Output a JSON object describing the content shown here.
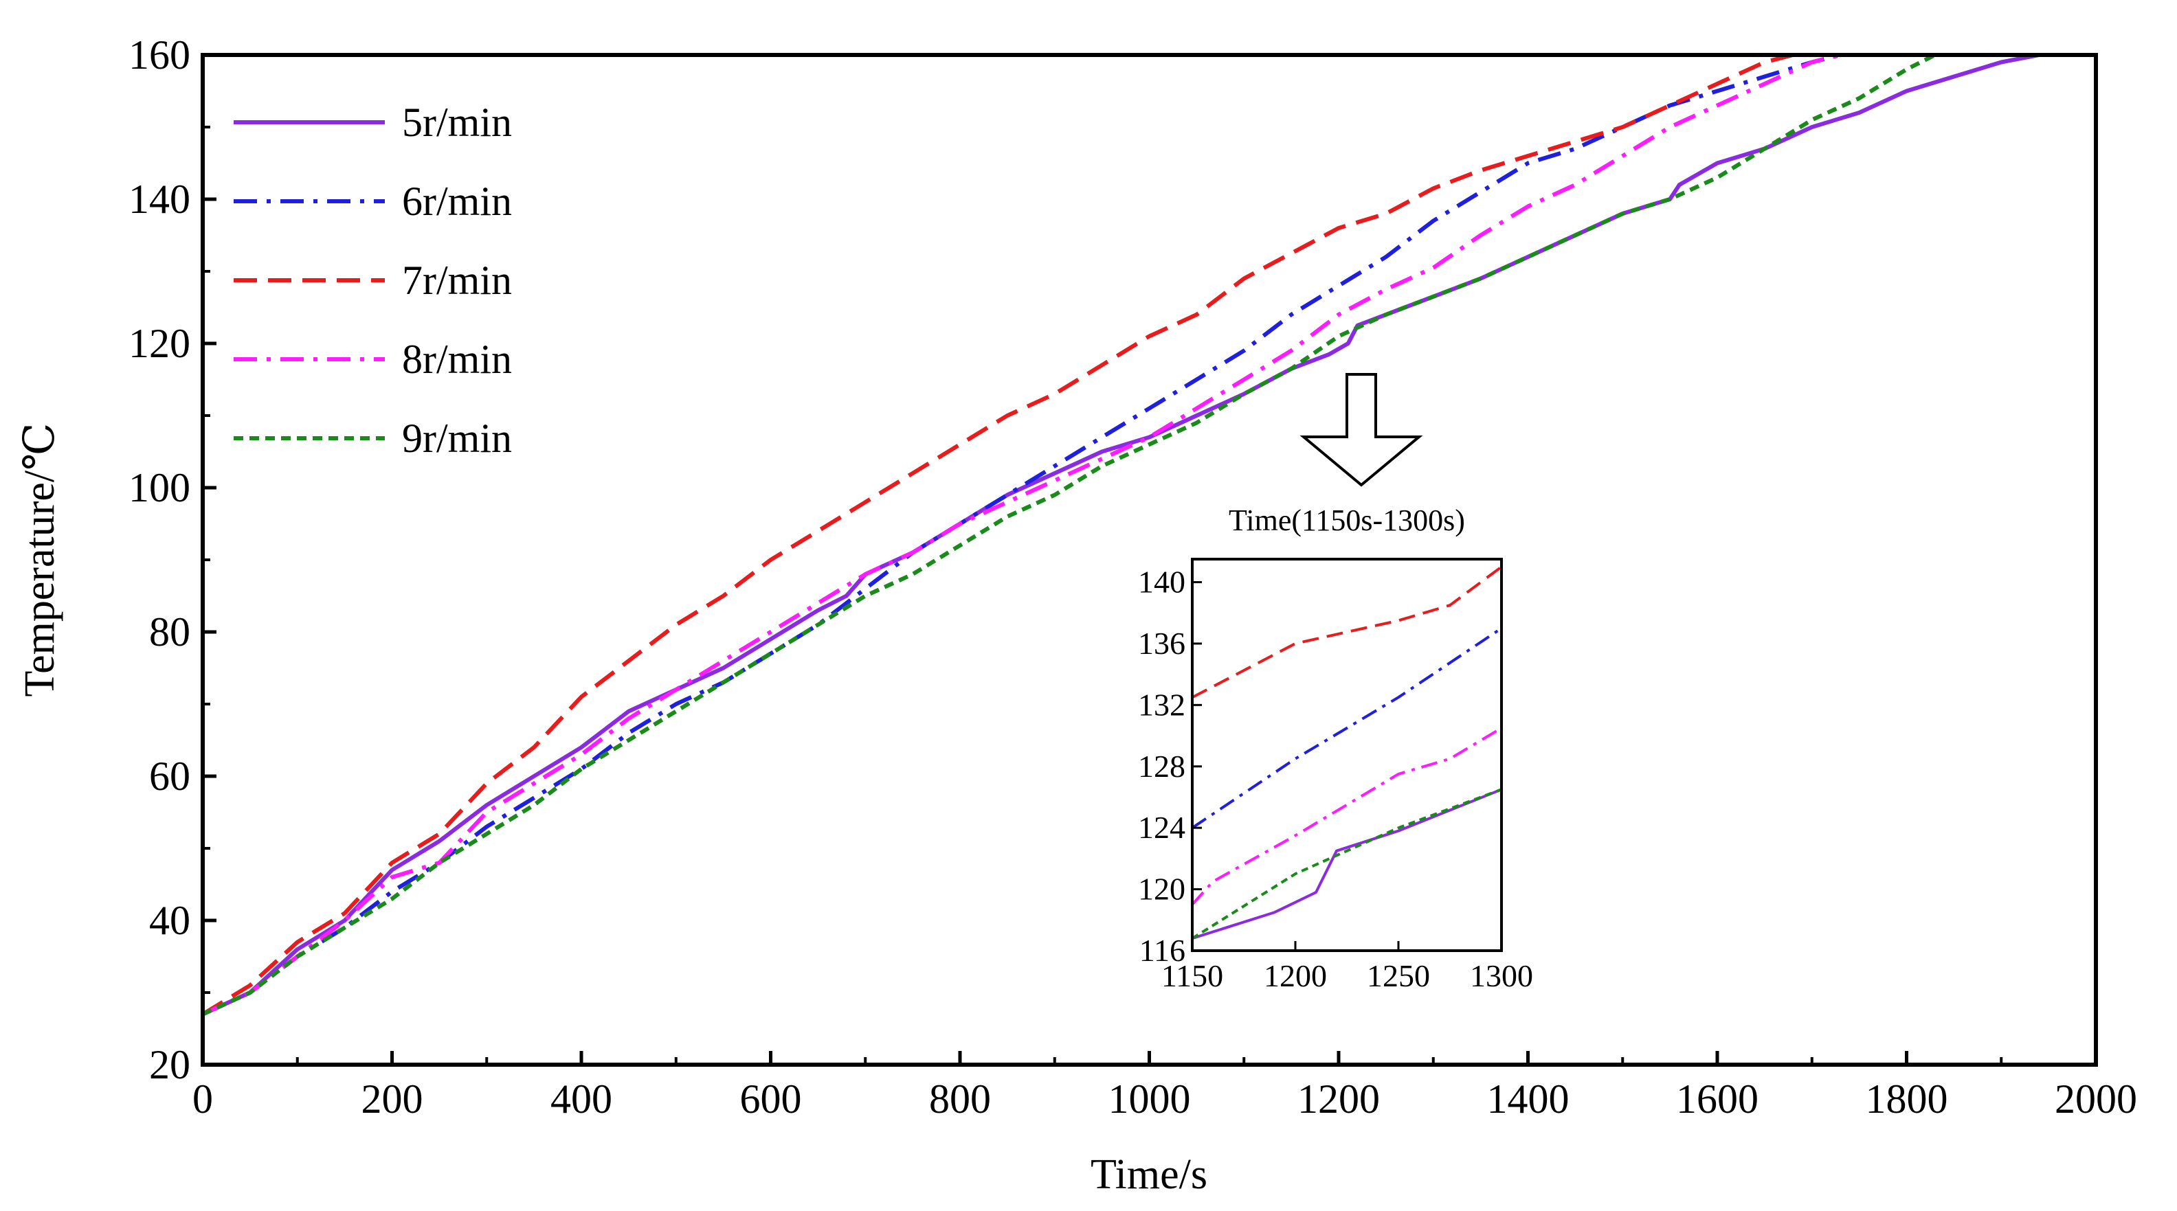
{
  "chart_data": {
    "main": {
      "type": "line",
      "xlabel": "Time/s",
      "ylabel": "Temperature/℃",
      "xlim": [
        0,
        2000
      ],
      "ylim": [
        20,
        160
      ],
      "xticks": [
        0,
        200,
        400,
        600,
        800,
        1000,
        1200,
        1400,
        1600,
        1800,
        2000
      ],
      "yticks": [
        20,
        40,
        60,
        80,
        100,
        120,
        140,
        160
      ],
      "grid": false,
      "legend_position": "top-left",
      "series": [
        {
          "name": "5r/min",
          "color": "#8a2be2",
          "dash": "solid",
          "points": [
            [
              0,
              27
            ],
            [
              50,
              30
            ],
            [
              100,
              36
            ],
            [
              150,
              40
            ],
            [
              200,
              47
            ],
            [
              250,
              51
            ],
            [
              270,
              53
            ],
            [
              300,
              56
            ],
            [
              350,
              60
            ],
            [
              400,
              64
            ],
            [
              450,
              69
            ],
            [
              500,
              72
            ],
            [
              550,
              75
            ],
            [
              600,
              79
            ],
            [
              650,
              83
            ],
            [
              680,
              85
            ],
            [
              700,
              88
            ],
            [
              750,
              91
            ],
            [
              800,
              95
            ],
            [
              850,
              99
            ],
            [
              900,
              102
            ],
            [
              950,
              105
            ],
            [
              1000,
              107
            ],
            [
              1050,
              110
            ],
            [
              1100,
              113
            ],
            [
              1150,
              116.5
            ],
            [
              1190,
              118.5
            ],
            [
              1210,
              120
            ],
            [
              1220,
              122.5
            ],
            [
              1250,
              124
            ],
            [
              1300,
              126.5
            ],
            [
              1350,
              129
            ],
            [
              1400,
              132
            ],
            [
              1450,
              135
            ],
            [
              1500,
              138
            ],
            [
              1550,
              140
            ],
            [
              1560,
              142
            ],
            [
              1600,
              145
            ],
            [
              1650,
              147
            ],
            [
              1700,
              150
            ],
            [
              1750,
              152
            ],
            [
              1800,
              155
            ],
            [
              1850,
              157
            ],
            [
              1900,
              159
            ],
            [
              1940,
              160
            ]
          ]
        },
        {
          "name": "6r/min",
          "color": "#1f1fe0",
          "dash": "dashdot",
          "points": [
            [
              0,
              27
            ],
            [
              50,
              30
            ],
            [
              100,
              35
            ],
            [
              150,
              39
            ],
            [
              200,
              44
            ],
            [
              250,
              48
            ],
            [
              300,
              53
            ],
            [
              350,
              57
            ],
            [
              400,
              61
            ],
            [
              450,
              66
            ],
            [
              500,
              70
            ],
            [
              550,
              73
            ],
            [
              600,
              77
            ],
            [
              650,
              81
            ],
            [
              700,
              86
            ],
            [
              750,
              91
            ],
            [
              800,
              95
            ],
            [
              850,
              99
            ],
            [
              900,
              103
            ],
            [
              950,
              107
            ],
            [
              1000,
              111
            ],
            [
              1050,
              115
            ],
            [
              1100,
              119
            ],
            [
              1150,
              124
            ],
            [
              1200,
              128
            ],
            [
              1250,
              132
            ],
            [
              1300,
              137
            ],
            [
              1350,
              141
            ],
            [
              1400,
              145
            ],
            [
              1450,
              147
            ],
            [
              1500,
              150
            ],
            [
              1550,
              153
            ],
            [
              1600,
              155
            ],
            [
              1650,
              157
            ],
            [
              1700,
              159
            ],
            [
              1730,
              160
            ]
          ]
        },
        {
          "name": "7r/min",
          "color": "#e81c1c",
          "dash": "dashed",
          "points": [
            [
              0,
              27
            ],
            [
              50,
              31
            ],
            [
              100,
              37
            ],
            [
              150,
              41
            ],
            [
              200,
              48
            ],
            [
              250,
              52
            ],
            [
              300,
              59
            ],
            [
              350,
              64
            ],
            [
              400,
              71
            ],
            [
              450,
              76
            ],
            [
              500,
              81
            ],
            [
              550,
              85
            ],
            [
              600,
              90
            ],
            [
              650,
              94
            ],
            [
              700,
              98
            ],
            [
              750,
              102
            ],
            [
              800,
              106
            ],
            [
              850,
              110
            ],
            [
              900,
              113
            ],
            [
              950,
              117
            ],
            [
              1000,
              121
            ],
            [
              1050,
              124
            ],
            [
              1100,
              129
            ],
            [
              1150,
              132.5
            ],
            [
              1200,
              136
            ],
            [
              1250,
              138
            ],
            [
              1300,
              141.5
            ],
            [
              1350,
              144
            ],
            [
              1400,
              146
            ],
            [
              1450,
              148
            ],
            [
              1500,
              150
            ],
            [
              1550,
              153
            ],
            [
              1600,
              156
            ],
            [
              1650,
              159
            ],
            [
              1680,
              160
            ]
          ]
        },
        {
          "name": "8r/min",
          "color": "#ff1cff",
          "dash": "dashdot",
          "points": [
            [
              0,
              27
            ],
            [
              50,
              30
            ],
            [
              100,
              35
            ],
            [
              150,
              40
            ],
            [
              200,
              46
            ],
            [
              250,
              48
            ],
            [
              300,
              55
            ],
            [
              350,
              59
            ],
            [
              400,
              63
            ],
            [
              450,
              68
            ],
            [
              500,
              72
            ],
            [
              550,
              76
            ],
            [
              600,
              80
            ],
            [
              650,
              84
            ],
            [
              700,
              88
            ],
            [
              750,
              91
            ],
            [
              800,
              95
            ],
            [
              850,
              98
            ],
            [
              900,
              101
            ],
            [
              950,
              104
            ],
            [
              1000,
              107
            ],
            [
              1050,
              111
            ],
            [
              1100,
              115
            ],
            [
              1150,
              119
            ],
            [
              1200,
              124
            ],
            [
              1250,
              127.5
            ],
            [
              1300,
              130.5
            ],
            [
              1350,
              135
            ],
            [
              1400,
              139
            ],
            [
              1450,
              142
            ],
            [
              1500,
              146
            ],
            [
              1550,
              150
            ],
            [
              1600,
              153
            ],
            [
              1650,
              156
            ],
            [
              1700,
              159
            ],
            [
              1730,
              160
            ]
          ]
        },
        {
          "name": "9r/min",
          "color": "#1a8a1a",
          "dash": "dotted",
          "points": [
            [
              0,
              27
            ],
            [
              50,
              30
            ],
            [
              100,
              35
            ],
            [
              150,
              39
            ],
            [
              200,
              43
            ],
            [
              250,
              48
            ],
            [
              300,
              52
            ],
            [
              350,
              56
            ],
            [
              400,
              61
            ],
            [
              450,
              65
            ],
            [
              500,
              69
            ],
            [
              550,
              73
            ],
            [
              600,
              77
            ],
            [
              650,
              81
            ],
            [
              700,
              85
            ],
            [
              750,
              88
            ],
            [
              800,
              92
            ],
            [
              850,
              96
            ],
            [
              900,
              99
            ],
            [
              950,
              103
            ],
            [
              1000,
              106
            ],
            [
              1050,
              109
            ],
            [
              1100,
              113
            ],
            [
              1150,
              116.5
            ],
            [
              1200,
              121
            ],
            [
              1250,
              124
            ],
            [
              1300,
              126.5
            ],
            [
              1350,
              129
            ],
            [
              1400,
              132
            ],
            [
              1450,
              135
            ],
            [
              1500,
              138
            ],
            [
              1550,
              140
            ],
            [
              1600,
              143
            ],
            [
              1650,
              147
            ],
            [
              1700,
              151
            ],
            [
              1750,
              154
            ],
            [
              1800,
              158
            ],
            [
              1830,
              160
            ]
          ]
        }
      ]
    },
    "inset": {
      "type": "line",
      "title": "Time(1150s-1300s)",
      "xlim": [
        1150,
        1300
      ],
      "ylim": [
        116,
        141.5
      ],
      "xticks": [
        1150,
        1200,
        1250,
        1300
      ],
      "yticks": [
        116,
        120,
        124,
        128,
        132,
        136,
        140
      ],
      "series": [
        {
          "name": "5r/min",
          "points": [
            [
              1150,
              116.8
            ],
            [
              1190,
              118.5
            ],
            [
              1210,
              119.8
            ],
            [
              1220,
              122.5
            ],
            [
              1250,
              123.8
            ],
            [
              1300,
              126.5
            ]
          ]
        },
        {
          "name": "6r/min",
          "points": [
            [
              1150,
              124
            ],
            [
              1200,
              128.5
            ],
            [
              1250,
              132.5
            ],
            [
              1300,
              137
            ]
          ]
        },
        {
          "name": "7r/min",
          "points": [
            [
              1150,
              132.5
            ],
            [
              1200,
              136
            ],
            [
              1250,
              137.5
            ],
            [
              1275,
              138.5
            ],
            [
              1300,
              141
            ]
          ]
        },
        {
          "name": "8r/min",
          "points": [
            [
              1150,
              119
            ],
            [
              1160,
              120.5
            ],
            [
              1200,
              123.5
            ],
            [
              1250,
              127.5
            ],
            [
              1275,
              128.5
            ],
            [
              1300,
              130.5
            ]
          ]
        },
        {
          "name": "9r/min",
          "points": [
            [
              1150,
              116.8
            ],
            [
              1200,
              121
            ],
            [
              1250,
              124
            ],
            [
              1300,
              126.5
            ]
          ]
        }
      ]
    }
  }
}
